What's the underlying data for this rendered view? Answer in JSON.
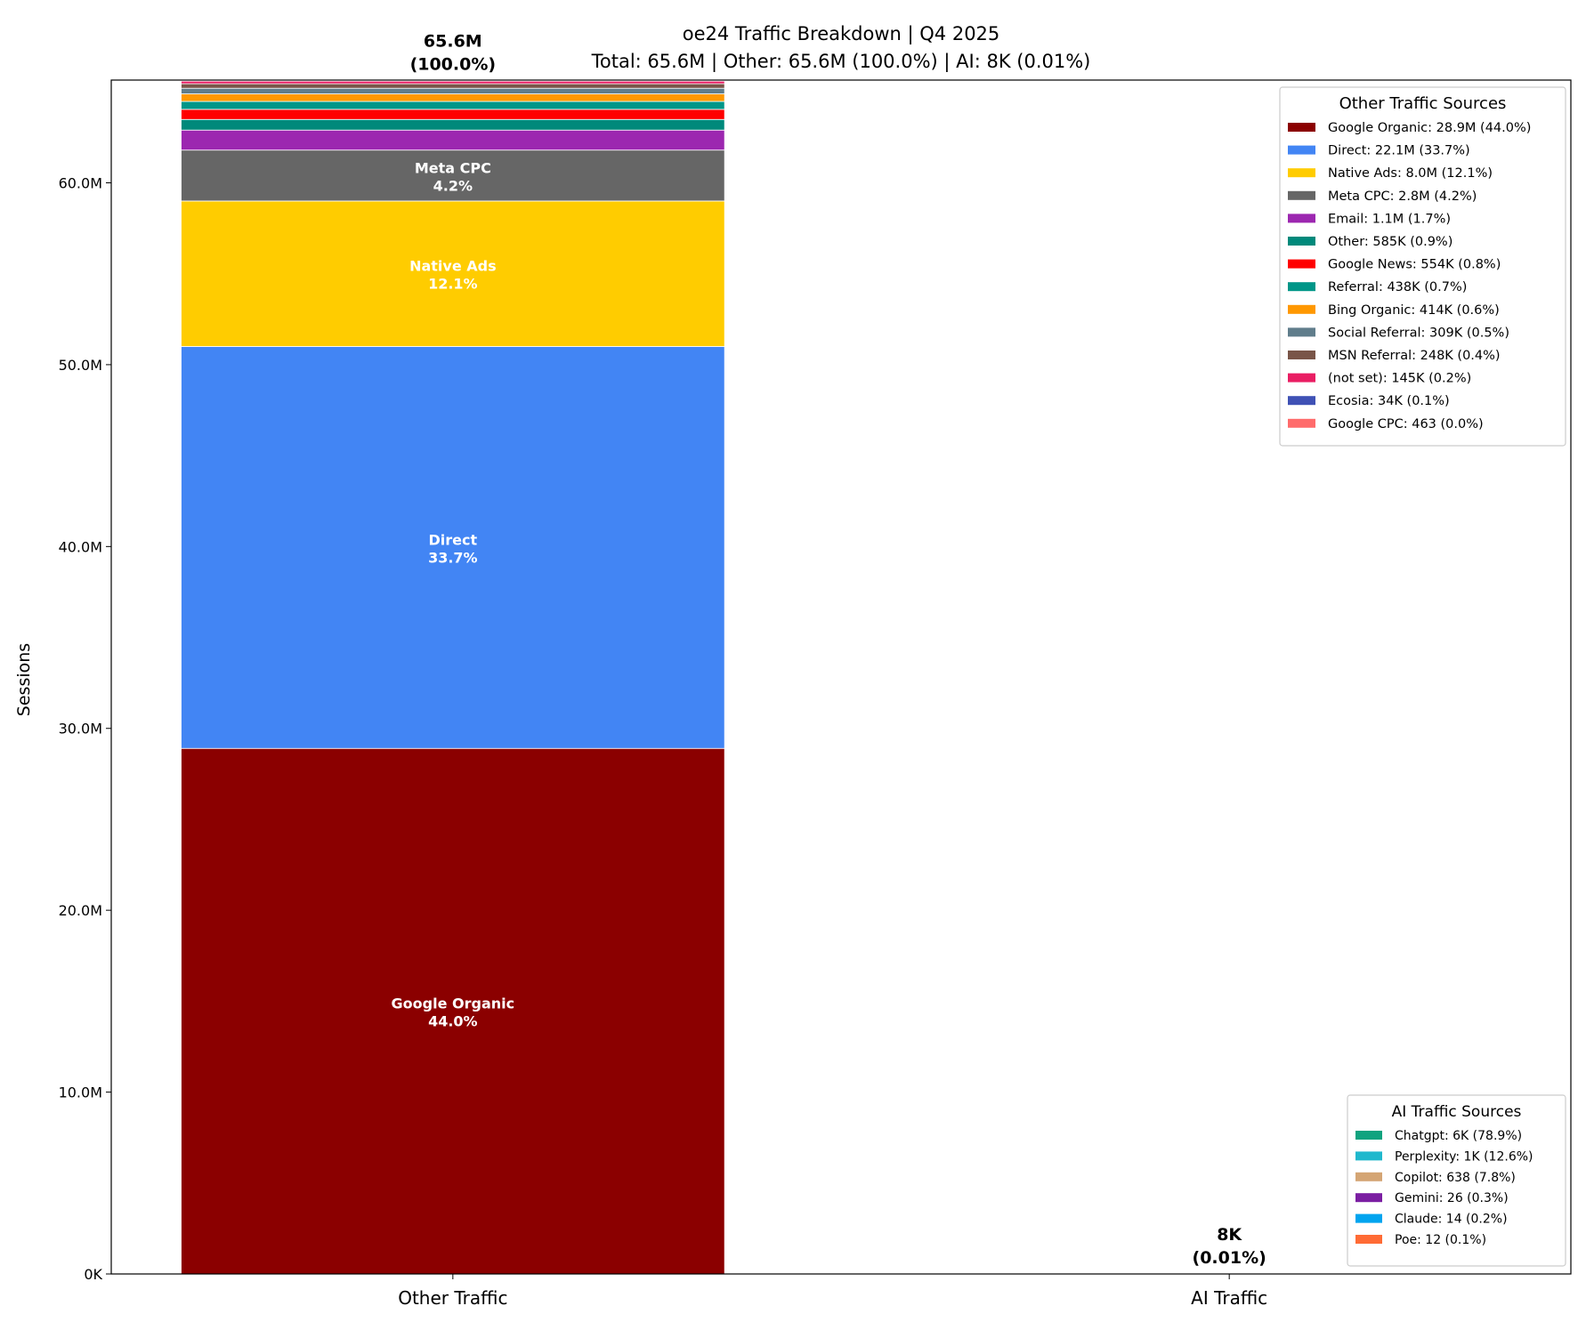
{
  "chart_data": {
    "type": "bar",
    "stacked": true,
    "title": "oe24 Traffic Breakdown | Q4 2025",
    "subtitle": "Total: 65.6M | Other: 65.6M (100.0%) | AI: 8K (0.01%)",
    "xlabel": "",
    "ylabel": "Sessions",
    "categories": [
      "Other Traffic",
      "AI Traffic"
    ],
    "ylim": [
      0,
      65650000
    ],
    "xlim": [
      -0.44,
      1.44
    ],
    "yticks": [
      0,
      10000000,
      20000000,
      30000000,
      40000000,
      50000000,
      60000000
    ],
    "ytick_labels": [
      "0K",
      "10.0M",
      "20.0M",
      "30.0M",
      "40.0M",
      "50.0M",
      "60.0M"
    ],
    "grid": false,
    "bar_totals": [
      {
        "category": "Other Traffic",
        "line1": "65.6M",
        "line2": "(100.0%)"
      },
      {
        "category": "AI Traffic",
        "line1": "8K",
        "line2": "(0.01%)"
      }
    ],
    "stacks": [
      {
        "category": "Other Traffic",
        "legend_title": "Other Traffic Sources",
        "legend_placement": "upper right",
        "segments": [
          {
            "name": "Google Organic",
            "value": 28900000,
            "pct": "44.0%",
            "legend": "Google Organic: 28.9M (44.0%)",
            "color": "#8b0000",
            "inline_label": true
          },
          {
            "name": "Direct",
            "value": 22100000,
            "pct": "33.7%",
            "legend": "Direct: 22.1M (33.7%)",
            "color": "#4285f4",
            "inline_label": true
          },
          {
            "name": "Native Ads",
            "value": 8000000,
            "pct": "12.1%",
            "legend": "Native Ads: 8.0M (12.1%)",
            "color": "#ffcc00",
            "inline_label": true
          },
          {
            "name": "Meta CPC",
            "value": 2800000,
            "pct": "4.2%",
            "legend": "Meta CPC: 2.8M (4.2%)",
            "color": "#666666",
            "inline_label": true
          },
          {
            "name": "Email",
            "value": 1100000,
            "pct": "1.7%",
            "legend": "Email: 1.1M (1.7%)",
            "color": "#9c27b0",
            "inline_label": false
          },
          {
            "name": "Other",
            "value": 585000,
            "pct": "0.9%",
            "legend": "Other: 585K (0.9%)",
            "color": "#00897b",
            "inline_label": false
          },
          {
            "name": "Google News",
            "value": 554000,
            "pct": "0.8%",
            "legend": "Google News: 554K (0.8%)",
            "color": "#ff0000",
            "inline_label": false
          },
          {
            "name": "Referral",
            "value": 438000,
            "pct": "0.7%",
            "legend": "Referral: 438K (0.7%)",
            "color": "#009688",
            "inline_label": false
          },
          {
            "name": "Bing Organic",
            "value": 414000,
            "pct": "0.6%",
            "legend": "Bing Organic: 414K (0.6%)",
            "color": "#ff9800",
            "inline_label": false
          },
          {
            "name": "Social Referral",
            "value": 309000,
            "pct": "0.5%",
            "legend": "Social Referral: 309K (0.5%)",
            "color": "#607d8b",
            "inline_label": false
          },
          {
            "name": "MSN Referral",
            "value": 248000,
            "pct": "0.4%",
            "legend": "MSN Referral: 248K (0.4%)",
            "color": "#795548",
            "inline_label": false
          },
          {
            "name": "(not set)",
            "value": 145000,
            "pct": "0.2%",
            "legend": "(not set): 145K (0.2%)",
            "color": "#e91e63",
            "inline_label": false
          },
          {
            "name": "Ecosia",
            "value": 34000,
            "pct": "0.1%",
            "legend": "Ecosia: 34K (0.1%)",
            "color": "#3f51b5",
            "inline_label": false
          },
          {
            "name": "Google CPC",
            "value": 463,
            "pct": "0.0%",
            "legend": "Google CPC: 463 (0.0%)",
            "color": "#ff6b6b",
            "inline_label": false
          }
        ]
      },
      {
        "category": "AI Traffic",
        "legend_title": "AI Traffic Sources",
        "legend_placement": "lower right",
        "segments": [
          {
            "name": "Chatgpt",
            "value": 6400,
            "pct": "78.9%",
            "legend": "Chatgpt: 6K (78.9%)",
            "color": "#10a37f",
            "inline_label": false
          },
          {
            "name": "Perplexity",
            "value": 1020,
            "pct": "12.6%",
            "legend": "Perplexity: 1K (12.6%)",
            "color": "#20b8cd",
            "inline_label": false
          },
          {
            "name": "Copilot",
            "value": 638,
            "pct": "7.8%",
            "legend": "Copilot: 638 (7.8%)",
            "color": "#d4a574",
            "inline_label": false
          },
          {
            "name": "Gemini",
            "value": 26,
            "pct": "0.3%",
            "legend": "Gemini: 26 (0.3%)",
            "color": "#7b1fa2",
            "inline_label": false
          },
          {
            "name": "Claude",
            "value": 14,
            "pct": "0.2%",
            "legend": "Claude: 14 (0.2%)",
            "color": "#00a4ef",
            "inline_label": false
          },
          {
            "name": "Poe",
            "value": 12,
            "pct": "0.1%",
            "legend": "Poe: 12 (0.1%)",
            "color": "#ff6b35",
            "inline_label": false
          }
        ]
      }
    ]
  }
}
